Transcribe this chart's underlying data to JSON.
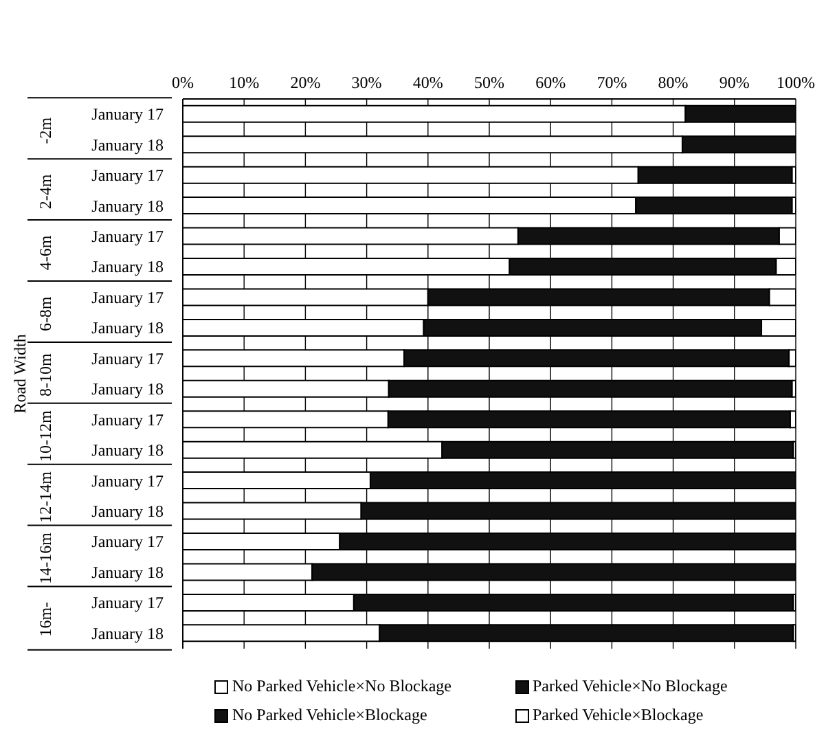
{
  "chart_data": {
    "type": "bar",
    "orientation": "horizontal",
    "stacked": true,
    "ylabel": "Road Width",
    "categories": [
      "January 17",
      "January 18",
      "January 17",
      "January 18",
      "January 17",
      "January 18",
      "January 17",
      "January 18",
      "January 17",
      "January 18",
      "January 17",
      "January 18",
      "January 17",
      "January 18",
      "January 17",
      "January 18",
      "January 17",
      "January 18"
    ],
    "annotations": [
      "-2m",
      "2-4m",
      "4-6m",
      "6-8m",
      "8-10m",
      "10-12m",
      "12-14m",
      "14-16m",
      "16m-"
    ],
    "series": [
      {
        "name": "No Parked Vehicle×No Blockage",
        "color": "#ffffff",
        "values": [
          82.0,
          81.5,
          74.3,
          73.9,
          54.7,
          53.3,
          40.0,
          39.3,
          36.1,
          33.6,
          33.5,
          42.3,
          30.6,
          29.1,
          25.6,
          21.1,
          27.9,
          32.1
        ]
      },
      {
        "name": "No Parked Vehicle×Blockage",
        "color": "#111111",
        "values": [
          0,
          0,
          0,
          0,
          0,
          0,
          0,
          0,
          0,
          0,
          0,
          0,
          0,
          0,
          0,
          0,
          0,
          0
        ]
      },
      {
        "name": "Parked Vehicle×No Blockage",
        "color": "#111111",
        "values": [
          18.0,
          18.5,
          25.1,
          25.5,
          42.6,
          43.5,
          55.7,
          55.1,
          62.8,
          65.8,
          65.6,
          57.3,
          69.4,
          70.9,
          74.4,
          78.9,
          71.7,
          67.5
        ]
      },
      {
        "name": "Parked Vehicle×Blockage",
        "color": "#ffffff",
        "values": [
          0,
          0,
          0.6,
          0.6,
          2.7,
          3.2,
          4.3,
          5.6,
          1.1,
          0.6,
          0.9,
          0.4,
          0,
          0,
          0,
          0,
          0.4,
          0.4
        ]
      }
    ],
    "xlim": [
      0,
      100
    ],
    "xticks": [
      {
        "value": 0,
        "label": "0%"
      },
      {
        "value": 10,
        "label": "10%"
      },
      {
        "value": 20,
        "label": "20%"
      },
      {
        "value": 30,
        "label": "30%"
      },
      {
        "value": 40,
        "label": "40%"
      },
      {
        "value": 50,
        "label": "50%"
      },
      {
        "value": 60,
        "label": "60%"
      },
      {
        "value": 70,
        "label": "70%"
      },
      {
        "value": 80,
        "label": "80%"
      },
      {
        "value": 90,
        "label": "90%"
      },
      {
        "value": 100,
        "label": "100%"
      }
    ],
    "grid": "x",
    "legend": "bottom"
  }
}
